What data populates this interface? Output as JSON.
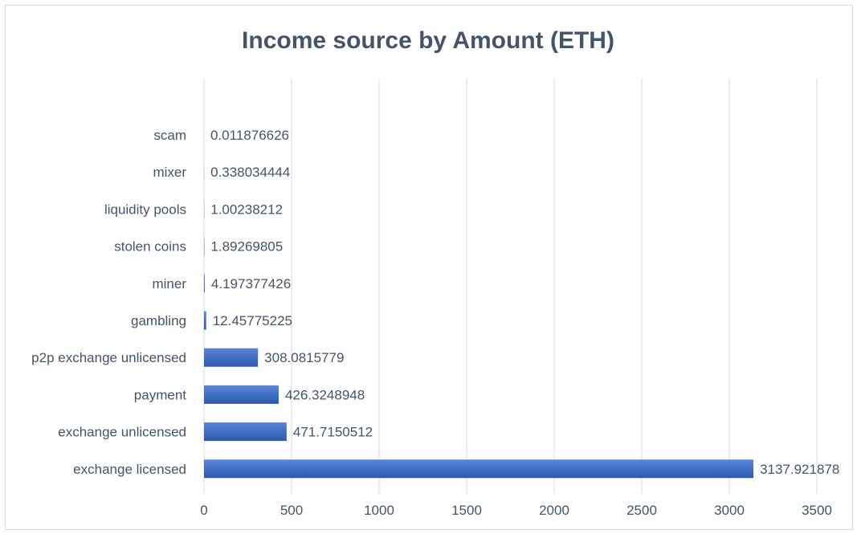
{
  "chart_data": {
    "type": "bar",
    "orientation": "horizontal",
    "title": "Income source by Amount (ETH)",
    "xlabel": "",
    "ylabel": "",
    "categories": [
      "scam",
      "mixer",
      "liquidity pools",
      "stolen coins",
      "miner",
      "gambling",
      "p2p exchange unlicensed",
      "payment",
      "exchange unlicensed",
      "exchange licensed"
    ],
    "values": [
      0.011876626,
      0.338034444,
      1.00238212,
      1.89269805,
      4.197377426,
      12.45775225,
      308.0815779,
      426.3248948,
      471.7150512,
      3137.921878
    ],
    "value_labels": [
      "0.011876626",
      "0.338034444",
      "1.00238212",
      "1.89269805",
      "4.197377426",
      "12.45775225",
      "308.0815779",
      "426.3248948",
      "471.7150512",
      "3137.921878"
    ],
    "xlim": [
      0,
      3500
    ],
    "x_ticks": [
      0,
      500,
      1000,
      1500,
      2000,
      2500,
      3000,
      3500
    ],
    "grid": "vertical",
    "legend": "none",
    "bar_color": "#4472c4"
  }
}
